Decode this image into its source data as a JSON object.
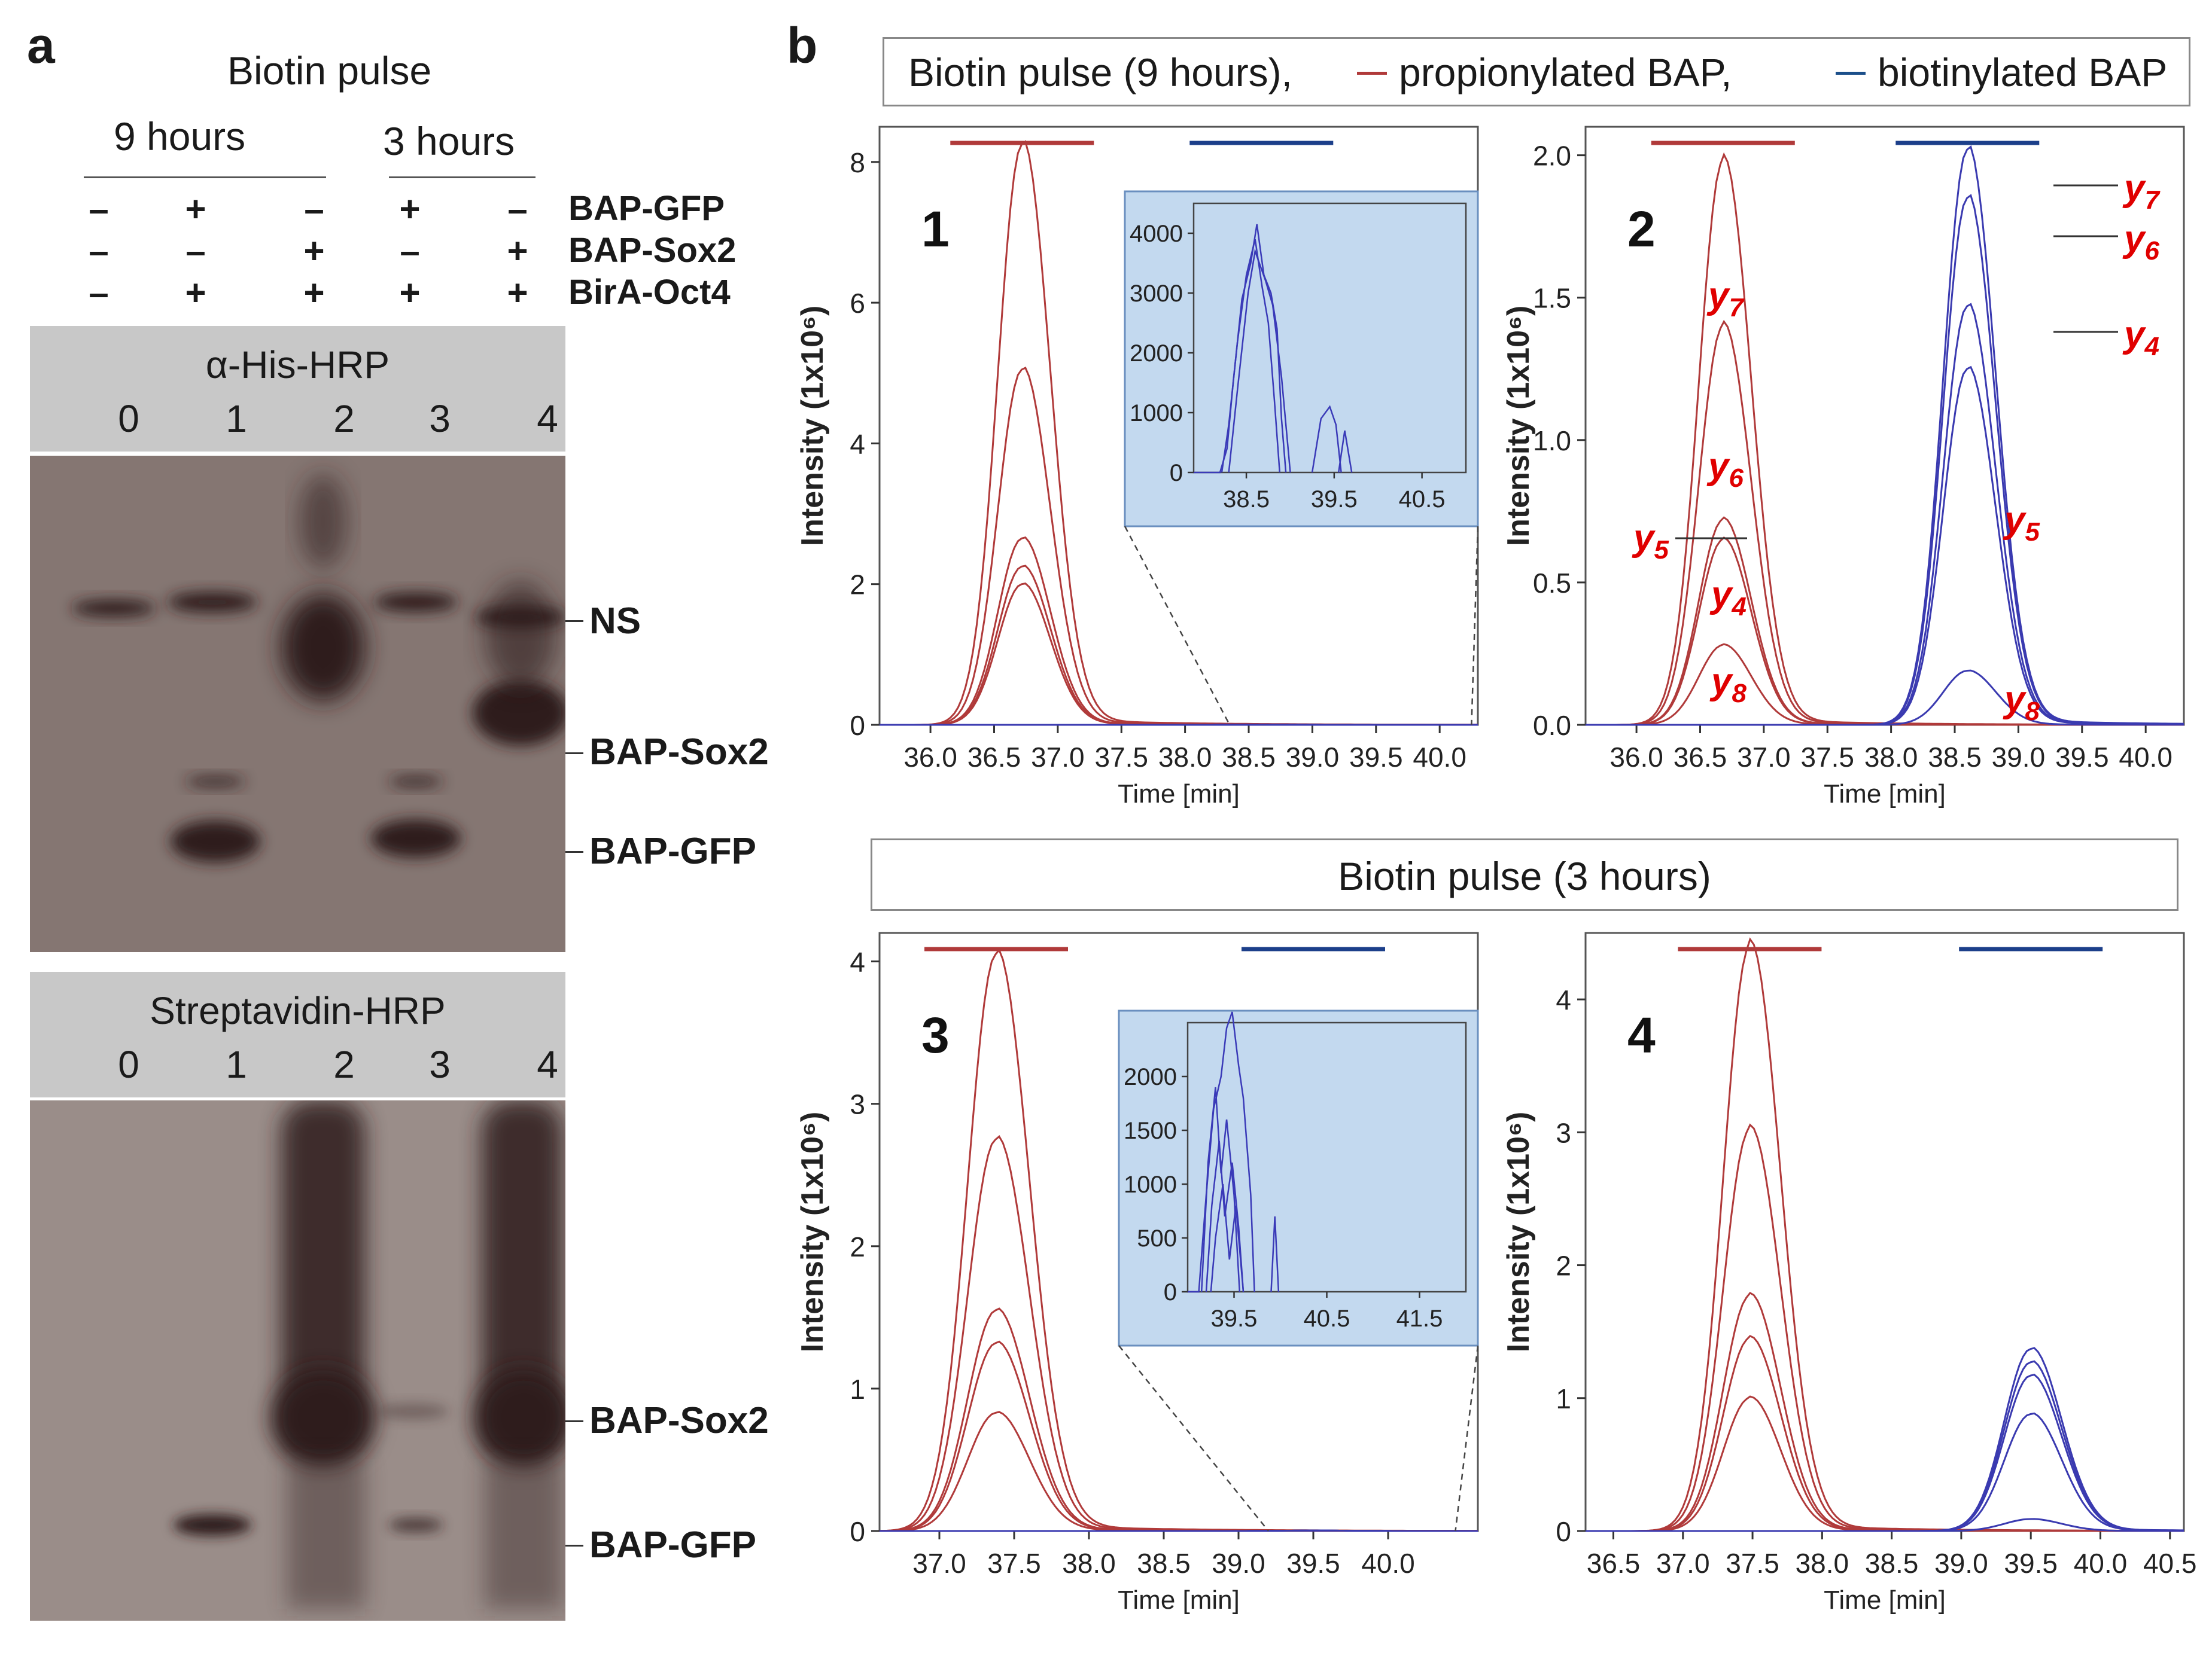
{
  "panel_a": {
    "letter": "a",
    "header": "Biotin pulse",
    "group_9h": "9 hours",
    "group_3h": "3 hours",
    "rows": [
      {
        "label": "BAP-GFP",
        "signs": [
          "–",
          "+",
          "–",
          "+",
          "–"
        ]
      },
      {
        "label": "BAP-Sox2",
        "signs": [
          "–",
          "–",
          "+",
          "–",
          "+"
        ]
      },
      {
        "label": "BirA-Oct4",
        "signs": [
          "–",
          "+",
          "+",
          "+",
          "+"
        ]
      }
    ],
    "blot1": {
      "title": "α-His-HRP",
      "lanes": [
        "0",
        "1",
        "2",
        "3",
        "4"
      ],
      "bands": [
        "NS",
        "BAP-Sox2",
        "BAP-GFP"
      ]
    },
    "blot2": {
      "title": "Streptavidin-HRP",
      "lanes": [
        "0",
        "1",
        "2",
        "3",
        "4"
      ],
      "bands": [
        "BAP-Sox2",
        "BAP-GFP"
      ]
    }
  },
  "panel_b": {
    "letter": "b",
    "legend_9h": {
      "prefix": "Biotin pulse (9 hours),",
      "red": "propionylated BAP,",
      "blue": "biotinylated BAP"
    },
    "legend_3h": "Biotin pulse (3 hours)",
    "colors": {
      "red": "#b03a3a",
      "blue": "#3a3ab0",
      "inset_bg": "#c3d9ef"
    },
    "ion_labels_red": [
      "y7",
      "y6",
      "y5",
      "y4",
      "y8"
    ],
    "ion_labels_blue": [
      "y7",
      "y6",
      "y4",
      "y5",
      "y8"
    ]
  },
  "chart_data": [
    {
      "type": "line",
      "panel": "1",
      "xlabel": "Time [min]",
      "ylabel": "Intensity  (1x10⁶)",
      "xlim": [
        35.6,
        40.3
      ],
      "ylim": [
        0,
        8.5
      ],
      "xticks": [
        "36.0",
        "36.5",
        "37.0",
        "37.5",
        "38.0",
        "38.5",
        "39.0",
        "39.5",
        "40.0"
      ],
      "yticks": [
        "0",
        "2",
        "4",
        "6",
        "8"
      ],
      "series": [
        {
          "name": "propionylated BAP",
          "color": "red",
          "peak_x": 36.72,
          "heights": [
            8.25,
            5.05,
            2.65,
            2.25,
            2.0
          ]
        },
        {
          "name": "biotinylated BAP",
          "color": "blue",
          "peak_x": 38.6,
          "heights": [
            0.003,
            0.003,
            0.003,
            0.003,
            0.003
          ]
        }
      ],
      "inset": {
        "xlim": [
          37.9,
          41.0
        ],
        "ylim": [
          0,
          4500
        ],
        "xticks": [
          "38.5",
          "39.5",
          "40.5"
        ],
        "yticks": [
          "0",
          "1000",
          "2000",
          "3000",
          "4000"
        ]
      }
    },
    {
      "type": "line",
      "panel": "2",
      "xlabel": "Time [min]",
      "ylabel": "Intensity  (1x10⁶)",
      "xlim": [
        35.6,
        40.3
      ],
      "ylim": [
        0,
        2.1
      ],
      "xticks": [
        "36.0",
        "36.5",
        "37.0",
        "37.5",
        "38.0",
        "38.5",
        "39.0",
        "39.5",
        "40.0"
      ],
      "yticks": [
        "0.0",
        "0.5",
        "1.0",
        "1.5",
        "2.0"
      ],
      "series": [
        {
          "name": "propionylated BAP",
          "color": "red",
          "peak_x": 36.68,
          "heights": [
            1.98,
            1.4,
            0.72,
            0.65,
            0.28
          ]
        },
        {
          "name": "biotinylated BAP",
          "color": "blue",
          "peak_x": 38.6,
          "heights": [
            2.02,
            1.85,
            1.47,
            1.25,
            0.19
          ]
        }
      ]
    },
    {
      "type": "line",
      "panel": "3",
      "xlabel": "Time [min]",
      "ylabel": "Intensity  (1x10⁶)",
      "xlim": [
        36.6,
        40.6
      ],
      "ylim": [
        0,
        4.2
      ],
      "xticks": [
        "37.0",
        "37.5",
        "38.0",
        "38.5",
        "39.0",
        "39.5",
        "40.0"
      ],
      "yticks": [
        "0",
        "1",
        "2",
        "3",
        "4"
      ],
      "series": [
        {
          "name": "propionylated BAP",
          "color": "red",
          "peak_x": 37.38,
          "heights": [
            4.05,
            2.75,
            1.55,
            1.32,
            0.83
          ]
        },
        {
          "name": "biotinylated BAP",
          "color": "blue",
          "peak_x": 39.5,
          "heights": [
            0.003,
            0.003,
            0.003,
            0.003,
            0.003
          ]
        }
      ],
      "inset": {
        "xlim": [
          39.0,
          42.0
        ],
        "ylim": [
          0,
          2500
        ],
        "xticks": [
          "39.5",
          "40.5",
          "41.5"
        ],
        "yticks": [
          "0",
          "500",
          "1000",
          "1500",
          "2000"
        ]
      }
    },
    {
      "type": "line",
      "panel": "4",
      "xlabel": "Time [min]",
      "ylabel": "Intensity  (1x10⁶)",
      "xlim": [
        36.3,
        40.6
      ],
      "ylim": [
        0,
        4.5
      ],
      "xticks": [
        "36.5",
        "37.0",
        "37.5",
        "38.0",
        "38.5",
        "39.0",
        "39.5",
        "40.0",
        "40.5"
      ],
      "yticks": [
        "0",
        "1",
        "2",
        "3",
        "4"
      ],
      "series": [
        {
          "name": "propionylated BAP",
          "color": "red",
          "peak_x": 37.48,
          "heights": [
            4.4,
            3.02,
            1.77,
            1.45,
            1.0
          ]
        },
        {
          "name": "biotinylated BAP",
          "color": "blue",
          "peak_x": 39.5,
          "heights": [
            1.37,
            1.27,
            1.17,
            0.88,
            0.09
          ]
        }
      ]
    }
  ]
}
